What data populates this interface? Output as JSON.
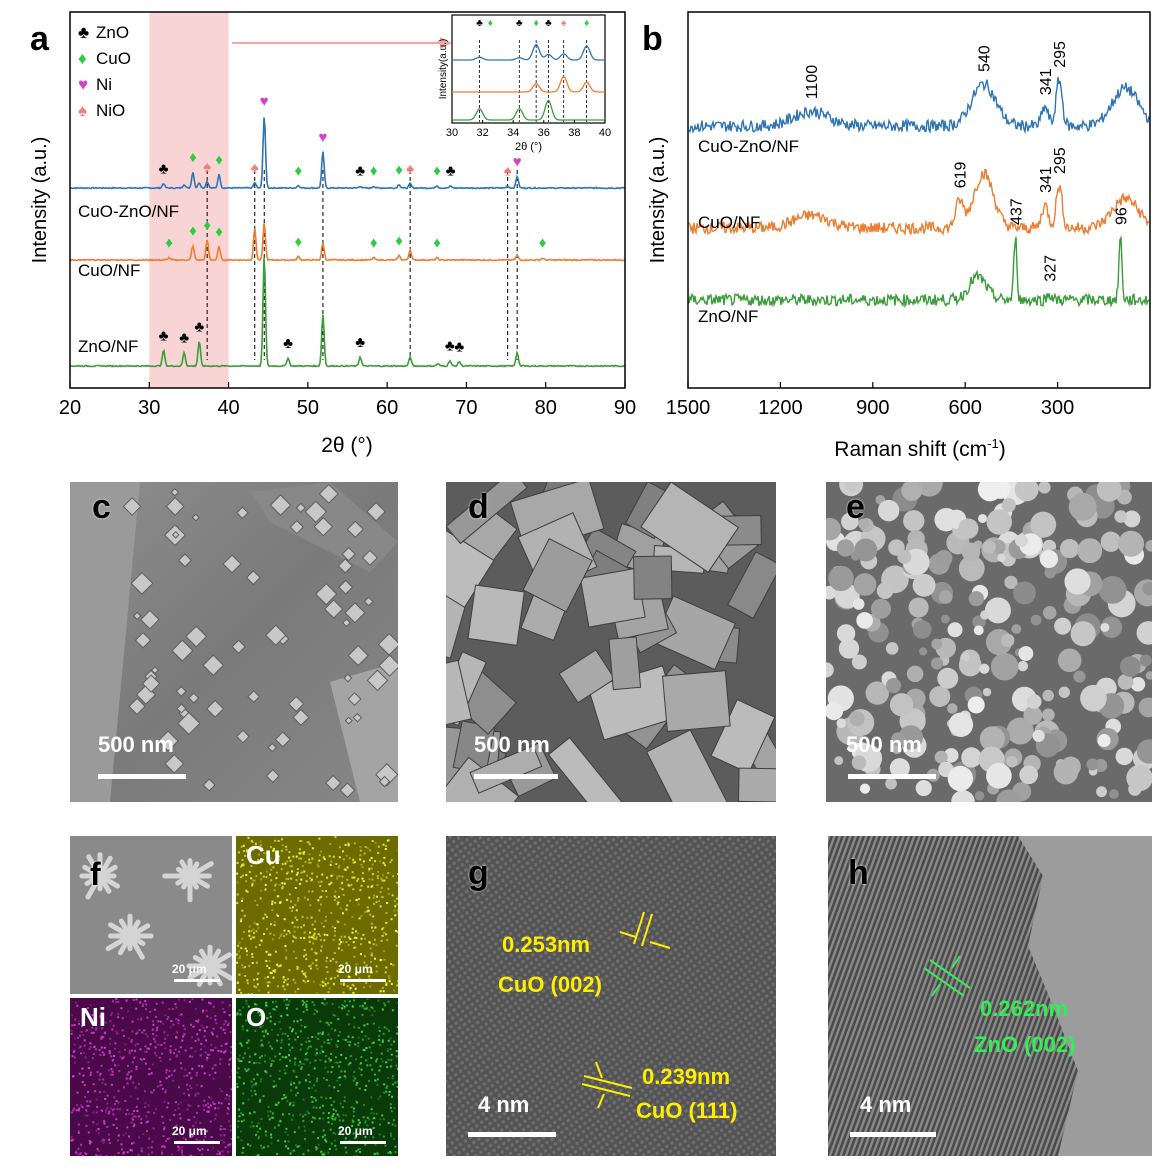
{
  "figure": {
    "panel_letters": [
      "a",
      "b",
      "c",
      "d",
      "e",
      "f",
      "g",
      "h"
    ],
    "colors": {
      "CuO-ZnO/NF": "#2e75b6",
      "CuO/NF": "#ed7d31",
      "ZnO/NF": "#3a9d3a",
      "ZnO_marker": "#000000",
      "CuO_marker": "#2ecc40",
      "Ni_marker": "#cc44cc",
      "NiO_marker": "#f08080",
      "highlight": "#f9d4d4",
      "scalebar": "#ffffff",
      "annotation_yellow": "#ffee00",
      "annotation_green": "#33ee55"
    }
  },
  "chart_data": [
    {
      "panel": "a",
      "type": "line",
      "xlabel": "2θ (°)",
      "ylabel": "Intensity (a.u.)",
      "xlim": [
        20,
        90
      ],
      "xticks": [
        20,
        30,
        40,
        50,
        60,
        70,
        80,
        90
      ],
      "highlight_range": [
        30,
        40
      ],
      "legend": [
        {
          "symbol": "♣",
          "name": "ZnO",
          "icon": "club-icon"
        },
        {
          "symbol": "♦",
          "name": "CuO",
          "icon": "diamond-icon"
        },
        {
          "symbol": "♥",
          "name": "Ni",
          "icon": "heart-icon"
        },
        {
          "symbol": "♠",
          "name": "NiO",
          "icon": "spade-icon"
        }
      ],
      "series": [
        {
          "name": "CuO-ZnO/NF",
          "color": "#2e75b6",
          "peaks": [
            {
              "x": 31.8,
              "h": 0.1
            },
            {
              "x": 34.4,
              "h": 0.08
            },
            {
              "x": 35.5,
              "h": 0.35
            },
            {
              "x": 36.3,
              "h": 0.12
            },
            {
              "x": 37.3,
              "h": 0.15
            },
            {
              "x": 38.8,
              "h": 0.3
            },
            {
              "x": 43.3,
              "h": 0.12
            },
            {
              "x": 44.5,
              "h": 1.6
            },
            {
              "x": 48.8,
              "h": 0.06
            },
            {
              "x": 51.9,
              "h": 0.8
            },
            {
              "x": 56.6,
              "h": 0.04
            },
            {
              "x": 58.3,
              "h": 0.04
            },
            {
              "x": 61.5,
              "h": 0.08
            },
            {
              "x": 62.9,
              "h": 0.1
            },
            {
              "x": 66.3,
              "h": 0.05
            },
            {
              "x": 68.0,
              "h": 0.04
            },
            {
              "x": 75.2,
              "h": 0.04
            },
            {
              "x": 76.4,
              "h": 0.26
            }
          ]
        },
        {
          "name": "CuO/NF",
          "color": "#ed7d31",
          "peaks": [
            {
              "x": 32.5,
              "h": 0.05
            },
            {
              "x": 35.5,
              "h": 0.32
            },
            {
              "x": 37.3,
              "h": 0.45
            },
            {
              "x": 38.8,
              "h": 0.3
            },
            {
              "x": 43.3,
              "h": 0.7
            },
            {
              "x": 44.5,
              "h": 0.82
            },
            {
              "x": 48.8,
              "h": 0.08
            },
            {
              "x": 51.9,
              "h": 0.38
            },
            {
              "x": 58.3,
              "h": 0.05
            },
            {
              "x": 61.5,
              "h": 0.1
            },
            {
              "x": 62.9,
              "h": 0.22
            },
            {
              "x": 66.3,
              "h": 0.05
            },
            {
              "x": 76.4,
              "h": 0.1
            },
            {
              "x": 79.6,
              "h": 0.04
            }
          ]
        },
        {
          "name": "ZnO/NF",
          "color": "#3a9d3a",
          "peaks": [
            {
              "x": 31.8,
              "h": 0.35
            },
            {
              "x": 34.4,
              "h": 0.3
            },
            {
              "x": 36.3,
              "h": 0.55
            },
            {
              "x": 44.5,
              "h": 2.45
            },
            {
              "x": 47.5,
              "h": 0.18
            },
            {
              "x": 51.9,
              "h": 1.15
            },
            {
              "x": 56.6,
              "h": 0.2
            },
            {
              "x": 62.9,
              "h": 0.2
            },
            {
              "x": 66.4,
              "h": 0.05
            },
            {
              "x": 67.9,
              "h": 0.12
            },
            {
              "x": 69.1,
              "h": 0.1
            },
            {
              "x": 76.4,
              "h": 0.3
            }
          ]
        }
      ],
      "markers": {
        "CuO-ZnO/NF": [
          {
            "x": 31.8,
            "s": "♣"
          },
          {
            "x": 35.5,
            "s": "♦"
          },
          {
            "x": 37.3,
            "s": "♠"
          },
          {
            "x": 38.8,
            "s": "♦"
          },
          {
            "x": 43.3,
            "s": "♠"
          },
          {
            "x": 44.5,
            "s": "♥"
          },
          {
            "x": 48.8,
            "s": "♦"
          },
          {
            "x": 51.9,
            "s": "♥"
          },
          {
            "x": 56.6,
            "s": "♣"
          },
          {
            "x": 58.3,
            "s": "♦"
          },
          {
            "x": 61.5,
            "s": "♦"
          },
          {
            "x": 62.9,
            "s": "♠"
          },
          {
            "x": 66.3,
            "s": "♦"
          },
          {
            "x": 68.0,
            "s": "♣"
          },
          {
            "x": 75.2,
            "s": "♠"
          },
          {
            "x": 76.4,
            "s": "♥"
          }
        ],
        "CuO/NF": [
          {
            "x": 32.5,
            "s": "♦"
          },
          {
            "x": 35.5,
            "s": "♦"
          },
          {
            "x": 37.3,
            "s": "♦"
          },
          {
            "x": 38.8,
            "s": "♦"
          },
          {
            "x": 48.8,
            "s": "♦"
          },
          {
            "x": 58.3,
            "s": "♦"
          },
          {
            "x": 61.5,
            "s": "♦"
          },
          {
            "x": 66.3,
            "s": "♦"
          },
          {
            "x": 79.6,
            "s": "♦"
          }
        ],
        "ZnO/NF": [
          {
            "x": 31.8,
            "s": "♣"
          },
          {
            "x": 34.4,
            "s": "♣"
          },
          {
            "x": 36.3,
            "s": "♣"
          },
          {
            "x": 47.5,
            "s": "♣"
          },
          {
            "x": 56.6,
            "s": "♣"
          },
          {
            "x": 67.9,
            "s": "♣"
          },
          {
            "x": 69.1,
            "s": "♣"
          }
        ]
      },
      "reference_lines": [
        37.3,
        43.3,
        44.5,
        51.9,
        62.9,
        75.2,
        76.4
      ]
    },
    {
      "panel": "a-inset",
      "type": "line",
      "xlabel": "2θ (°)",
      "ylabel": "Intensity(a.u.)",
      "xlim": [
        30,
        40
      ],
      "xticks": [
        30,
        32,
        34,
        36,
        38,
        40
      ],
      "series": [
        {
          "name": "CuO-ZnO/NF",
          "color": "#2e75b6",
          "peaks": [
            {
              "x": 31.8,
              "h": 0.1
            },
            {
              "x": 34.4,
              "h": 0.08
            },
            {
              "x": 35.5,
              "h": 0.55
            },
            {
              "x": 36.3,
              "h": 0.2
            },
            {
              "x": 37.3,
              "h": 0.22
            },
            {
              "x": 38.8,
              "h": 0.5
            }
          ]
        },
        {
          "name": "CuO/NF",
          "color": "#ed7d31",
          "peaks": [
            {
              "x": 35.5,
              "h": 0.3
            },
            {
              "x": 37.3,
              "h": 0.55
            },
            {
              "x": 38.8,
              "h": 0.35
            }
          ]
        },
        {
          "name": "ZnO/NF",
          "color": "#3a9d3a",
          "peaks": [
            {
              "x": 31.8,
              "h": 0.4
            },
            {
              "x": 34.4,
              "h": 0.4
            },
            {
              "x": 36.3,
              "h": 0.7
            }
          ]
        }
      ],
      "markers": [
        {
          "x": 31.8,
          "s": "♣"
        },
        {
          "x": 32.5,
          "s": "♦"
        },
        {
          "x": 34.4,
          "s": "♣"
        },
        {
          "x": 35.5,
          "s": "♦"
        },
        {
          "x": 36.3,
          "s": "♣"
        },
        {
          "x": 37.3,
          "s": "♠"
        },
        {
          "x": 38.8,
          "s": "♦"
        }
      ],
      "reference_lines": [
        31.8,
        34.4,
        35.5,
        36.3,
        37.3,
        38.8
      ]
    },
    {
      "panel": "b",
      "type": "line",
      "xlabel": "Raman shift (cm",
      "xlabel_sup": "-1",
      "xlabel_end": ")",
      "ylabel": "Intensity (a.u.)",
      "xlim": [
        1500,
        0
      ],
      "xticks": [
        1500,
        1200,
        900,
        600,
        300
      ],
      "series": [
        {
          "name": "CuO-ZnO/NF",
          "color": "#2e75b6",
          "bands": [
            {
              "x": 1100,
              "h": 0.35,
              "w": 80
            },
            {
              "x": 540,
              "h": 1.0,
              "w": 55
            },
            {
              "x": 341,
              "h": 0.45,
              "w": 15
            },
            {
              "x": 295,
              "h": 1.1,
              "w": 14
            },
            {
              "x": 80,
              "h": 0.9,
              "w": 60
            }
          ]
        },
        {
          "name": "CuO/NF",
          "color": "#ed7d31",
          "bands": [
            {
              "x": 1100,
              "h": 0.3,
              "w": 80
            },
            {
              "x": 619,
              "h": 0.6,
              "w": 18
            },
            {
              "x": 540,
              "h": 1.3,
              "w": 45
            },
            {
              "x": 341,
              "h": 0.55,
              "w": 15
            },
            {
              "x": 295,
              "h": 1.0,
              "w": 14
            },
            {
              "x": 80,
              "h": 0.7,
              "w": 60
            }
          ]
        },
        {
          "name": "ZnO/NF",
          "color": "#3a9d3a",
          "bands": [
            {
              "x": 560,
              "h": 0.55,
              "w": 40
            },
            {
              "x": 437,
              "h": 1.5,
              "w": 7
            },
            {
              "x": 327,
              "h": 0.15,
              "w": 10
            },
            {
              "x": 96,
              "h": 1.5,
              "w": 7
            }
          ]
        }
      ],
      "annotations": [
        {
          "text": "1100",
          "series": "CuO-ZnO/NF",
          "x": 1100
        },
        {
          "text": "540",
          "series": "CuO-ZnO/NF",
          "x": 540
        },
        {
          "text": "341",
          "series": "CuO-ZnO/NF",
          "x": 341
        },
        {
          "text": "295",
          "series": "CuO-ZnO/NF",
          "x": 295
        },
        {
          "text": "619",
          "series": "CuO/NF",
          "x": 619
        },
        {
          "text": "341",
          "series": "CuO/NF",
          "x": 341
        },
        {
          "text": "295",
          "series": "CuO/NF",
          "x": 295
        },
        {
          "text": "437",
          "series": "ZnO/NF",
          "x": 437
        },
        {
          "text": "327",
          "series": "ZnO/NF",
          "x": 327
        },
        {
          "text": "96",
          "series": "ZnO/NF",
          "x": 96
        }
      ]
    }
  ],
  "images": {
    "c": {
      "scalebar": "500 nm"
    },
    "d": {
      "scalebar": "500 nm"
    },
    "e": {
      "scalebar": "500 nm"
    },
    "f": {
      "scalebar": "20 μm"
    },
    "f_cu": {
      "label": "Cu",
      "scalebar": "20 μm"
    },
    "f_ni": {
      "label": "Ni",
      "scalebar": "20 μm"
    },
    "f_o": {
      "label": "O",
      "scalebar": "20 μm"
    },
    "g": {
      "scalebar": "4 nm",
      "annotations": [
        {
          "spacing": "0.253nm",
          "plane": "CuO (002)"
        },
        {
          "spacing": "0.239nm",
          "plane": "CuO (111)"
        }
      ]
    },
    "h": {
      "scalebar": "4 nm",
      "annotations": [
        {
          "spacing": "0.262nm",
          "plane": "ZnO (002)"
        }
      ]
    }
  }
}
